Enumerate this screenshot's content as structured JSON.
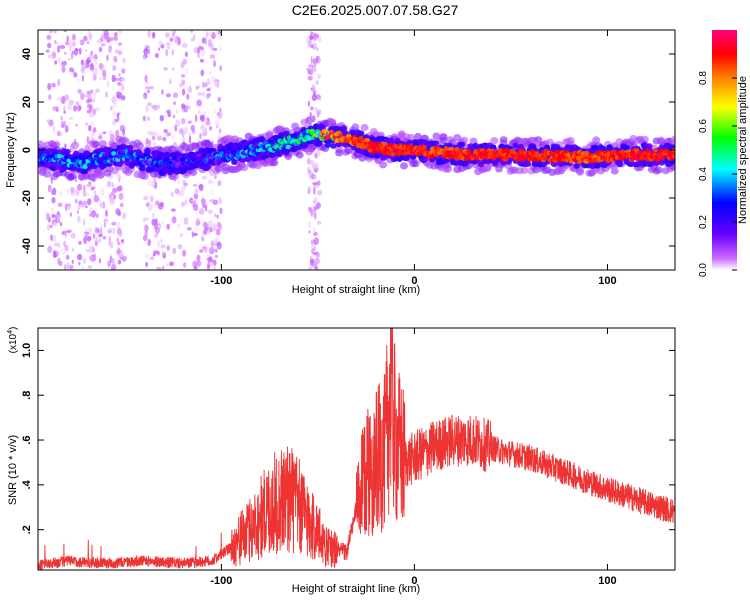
{
  "title": "C2E6.2025.007.07.58.G27",
  "chart_data": [
    {
      "type": "heatmap",
      "xlabel": "Height of straight line (km)",
      "ylabel": "Frequency (Hz)",
      "xlim": [
        -195,
        135
      ],
      "ylim": [
        -50,
        50
      ],
      "xticks": [
        -100,
        0,
        100
      ],
      "yticks": [
        -40,
        -20,
        0,
        20,
        40
      ],
      "colorbar": {
        "label": "Normalized spectral amplitude",
        "range": [
          0,
          1
        ],
        "ticks": [
          0.0,
          0.2,
          0.4,
          0.6,
          0.8
        ],
        "colors": [
          "#ffffff",
          "#cc66ff",
          "#6600ff",
          "#0000ff",
          "#00ffff",
          "#00ff00",
          "#ffff00",
          "#ff8000",
          "#ff0000",
          "#ff0080"
        ]
      },
      "ridge": {
        "x": [
          -190,
          -170,
          -150,
          -130,
          -110,
          -90,
          -70,
          -55,
          -45,
          -35,
          -20,
          -10,
          0,
          10,
          30,
          60,
          90,
          110,
          135
        ],
        "y": [
          -4,
          -5,
          -2,
          -6,
          -4,
          -1,
          2,
          6,
          6,
          5,
          1,
          0,
          0,
          -1,
          -2,
          -2,
          -3,
          -2,
          -2
        ],
        "amplitude": [
          0.32,
          0.35,
          0.33,
          0.28,
          0.3,
          0.32,
          0.38,
          0.42,
          0.75,
          0.9,
          0.95,
          0.95,
          0.95,
          0.9,
          0.95,
          0.95,
          0.9,
          0.95,
          0.95
        ]
      }
    },
    {
      "type": "line",
      "xlabel": "Height of straight line (km)",
      "ylabel": "SNR (10 * v/v)",
      "yunit": "(x10",
      "yunit_exp": "4",
      "yunit_close": ")",
      "xlim": [
        -195,
        135
      ],
      "ylim": [
        0.02,
        1.1
      ],
      "xticks": [
        -100,
        0,
        100
      ],
      "yticks": [
        0.2,
        0.4,
        0.6,
        0.8,
        1.0
      ],
      "color": "#ee3333",
      "series": [
        {
          "x": [
            -195,
            -180,
            -160,
            -140,
            -120,
            -105,
            -95,
            -85,
            -75,
            -65,
            -55,
            -45,
            -35,
            -30,
            -25,
            -20,
            -15,
            -12,
            -10,
            -5,
            0,
            10,
            20,
            30,
            45,
            60,
            80,
            100,
            120,
            135
          ],
          "y": [
            0.04,
            0.06,
            0.05,
            0.06,
            0.05,
            0.06,
            0.12,
            0.2,
            0.3,
            0.35,
            0.25,
            0.12,
            0.1,
            0.3,
            0.45,
            0.5,
            0.55,
            0.9,
            0.6,
            0.5,
            0.52,
            0.57,
            0.6,
            0.6,
            0.55,
            0.52,
            0.45,
            0.38,
            0.32,
            0.28
          ]
        }
      ]
    }
  ]
}
